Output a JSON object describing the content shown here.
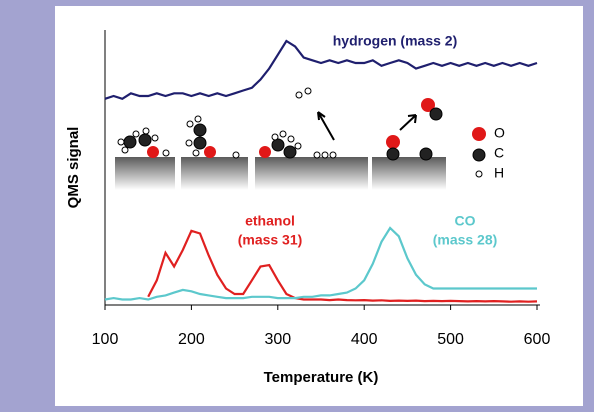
{
  "chart_data": {
    "type": "line",
    "xlabel": "Temperature (K)",
    "ylabel": "QMS signal",
    "x": [
      100,
      110,
      120,
      130,
      140,
      150,
      160,
      170,
      180,
      190,
      200,
      210,
      220,
      230,
      240,
      250,
      260,
      270,
      280,
      290,
      300,
      310,
      320,
      330,
      340,
      350,
      360,
      370,
      380,
      390,
      400,
      410,
      420,
      430,
      440,
      450,
      460,
      470,
      480,
      490,
      500,
      510,
      520,
      530,
      540,
      550,
      560,
      570,
      580,
      590,
      600
    ],
    "xlim": [
      100,
      600
    ],
    "xticks": [
      100,
      200,
      300,
      400,
      500,
      600
    ],
    "ylim": [
      0,
      10
    ],
    "series": [
      {
        "name": "hydrogen (mass 2)",
        "color": "#1f1f6e",
        "values": [
          7.5,
          7.6,
          7.5,
          7.7,
          7.6,
          7.6,
          7.7,
          7.6,
          7.7,
          7.7,
          7.6,
          7.7,
          7.6,
          7.7,
          7.6,
          7.7,
          7.8,
          7.9,
          8.2,
          8.6,
          9.1,
          9.6,
          9.4,
          9.0,
          8.9,
          8.8,
          8.9,
          8.8,
          8.9,
          8.8,
          8.8,
          8.9,
          8.7,
          8.8,
          8.9,
          8.8,
          8.6,
          8.7,
          8.8,
          8.7,
          8.8,
          8.7,
          8.8,
          8.7,
          8.8,
          8.7,
          8.8,
          8.7,
          8.8,
          8.7,
          8.8
        ]
      },
      {
        "name": "ethanol",
        "sublabel": "(mass 31)",
        "color": "#e02020",
        "values": [
          null,
          null,
          null,
          null,
          null,
          0.3,
          0.9,
          1.9,
          1.4,
          2.0,
          2.7,
          2.6,
          1.8,
          1.1,
          0.6,
          0.4,
          0.4,
          0.9,
          1.4,
          1.45,
          0.9,
          0.4,
          0.25,
          0.2,
          0.2,
          0.2,
          0.18,
          0.2,
          0.18,
          0.17,
          0.18,
          0.16,
          0.17,
          0.15,
          0.16,
          0.15,
          0.16,
          0.14,
          0.15,
          0.14,
          0.15,
          0.14,
          0.13,
          0.14,
          0.13,
          0.14,
          0.13,
          0.12,
          0.13,
          0.12,
          0.13
        ]
      },
      {
        "name": "CO",
        "sublabel": "(mass 28)",
        "color": "#5cc8cc",
        "values": [
          0.2,
          0.25,
          0.2,
          0.2,
          0.25,
          0.2,
          0.3,
          0.35,
          0.45,
          0.55,
          0.5,
          0.4,
          0.35,
          0.3,
          0.25,
          0.25,
          0.25,
          0.3,
          0.3,
          0.3,
          0.25,
          0.25,
          0.25,
          0.3,
          0.3,
          0.35,
          0.35,
          0.4,
          0.45,
          0.6,
          0.9,
          1.5,
          2.3,
          2.8,
          2.5,
          1.7,
          1.1,
          0.75,
          0.6,
          0.6,
          0.6,
          0.6,
          0.6,
          0.6,
          0.6,
          0.6,
          0.6,
          0.6,
          0.6,
          0.6,
          0.6
        ]
      }
    ],
    "diagram_legend": [
      "O",
      "C",
      "H"
    ]
  }
}
